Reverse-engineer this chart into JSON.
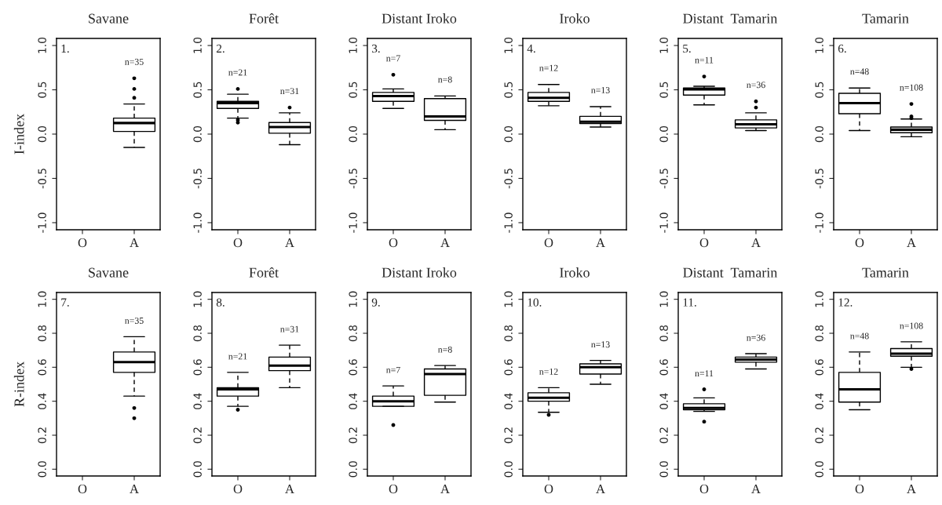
{
  "chart_data": [
    {
      "type": "box",
      "title": "Savane",
      "ylabel": "I-index",
      "categories": [
        "O",
        "A"
      ],
      "ylim": [
        -1.08,
        1.08
      ],
      "yticks": [
        {
          "value": -1,
          "label": "-1.0"
        },
        {
          "value": -0.5,
          "label": "-0.5"
        },
        {
          "value": 0,
          "label": "0.0"
        },
        {
          "value": 0.5,
          "label": "0.5"
        },
        {
          "value": 1,
          "label": "1.0"
        }
      ],
      "boxes": [
        null,
        {
          "low": -0.15,
          "q1": 0.03,
          "median": 0.125,
          "q3": 0.18,
          "high": 0.34,
          "outliers": [
            0.41,
            0.51,
            0.63
          ]
        }
      ],
      "annotations": [
        "1.",
        "n=35"
      ]
    },
    {
      "type": "box",
      "title": "Forêt",
      "categories": [
        "O",
        "A"
      ],
      "ylim": [
        -1.08,
        1.08
      ],
      "yticks": [
        {
          "value": -1,
          "label": "-1.0"
        },
        {
          "value": -0.5,
          "label": "-0.5"
        },
        {
          "value": 0,
          "label": "0.0"
        },
        {
          "value": 0.5,
          "label": "0.5"
        },
        {
          "value": 1,
          "label": "1.0"
        }
      ],
      "boxes": [
        {
          "low": 0.18,
          "q1": 0.29,
          "median": 0.35,
          "q3": 0.37,
          "high": 0.45,
          "outliers": [
            0.51,
            0.16,
            0.13
          ]
        },
        {
          "low": -0.12,
          "q1": 0.01,
          "median": 0.08,
          "q3": 0.13,
          "high": 0.24,
          "outliers": [
            0.3
          ]
        }
      ],
      "annotations": [
        "2.",
        "n=21",
        "n=31"
      ]
    },
    {
      "type": "box",
      "title": "Distant Iroko",
      "categories": [
        "O",
        "A"
      ],
      "ylim": [
        -1.08,
        1.08
      ],
      "yticks": [
        {
          "value": -1,
          "label": "-1.0"
        },
        {
          "value": -0.5,
          "label": "-0.5"
        },
        {
          "value": 0,
          "label": "0.0"
        },
        {
          "value": 0.5,
          "label": "0.5"
        },
        {
          "value": 1,
          "label": "1.0"
        }
      ],
      "boxes": [
        {
          "low": 0.29,
          "q1": 0.37,
          "median": 0.43,
          "q3": 0.47,
          "high": 0.51,
          "outliers": [
            0.67
          ]
        },
        {
          "low": 0.05,
          "q1": 0.155,
          "median": 0.2,
          "q3": 0.4,
          "high": 0.43
        }
      ],
      "annotations": [
        "3.",
        "n=7",
        "n=8"
      ]
    },
    {
      "type": "box",
      "title": "Iroko",
      "categories": [
        "O",
        "A"
      ],
      "ylim": [
        -1.08,
        1.08
      ],
      "yticks": [
        {
          "value": -1,
          "label": "-1.0"
        },
        {
          "value": -0.5,
          "label": "-0.5"
        },
        {
          "value": 0,
          "label": "0.0"
        },
        {
          "value": 0.5,
          "label": "0.5"
        },
        {
          "value": 1,
          "label": "1.0"
        }
      ],
      "boxes": [
        {
          "low": 0.32,
          "q1": 0.37,
          "median": 0.41,
          "q3": 0.47,
          "high": 0.56
        },
        {
          "low": 0.08,
          "q1": 0.12,
          "median": 0.14,
          "q3": 0.2,
          "high": 0.31
        }
      ],
      "annotations": [
        "4.",
        "n=12",
        "n=13"
      ]
    },
    {
      "type": "box",
      "title": "Distant  Tamarin",
      "categories": [
        "O",
        "A"
      ],
      "ylim": [
        -1.08,
        1.08
      ],
      "yticks": [
        {
          "value": -1,
          "label": "-1.0"
        },
        {
          "value": -0.5,
          "label": "-0.5"
        },
        {
          "value": 0,
          "label": "0.0"
        },
        {
          "value": 0.5,
          "label": "0.5"
        },
        {
          "value": 1,
          "label": "1.0"
        }
      ],
      "boxes": [
        {
          "low": 0.33,
          "q1": 0.44,
          "median": 0.505,
          "q3": 0.52,
          "high": 0.54,
          "outliers": [
            0.65
          ]
        },
        {
          "low": 0.04,
          "q1": 0.07,
          "median": 0.11,
          "q3": 0.16,
          "high": 0.24,
          "outliers": [
            0.3,
            0.37
          ]
        }
      ],
      "annotations": [
        "5.",
        "n=11",
        "n=36"
      ]
    },
    {
      "type": "box",
      "title": "Tamarin",
      "categories": [
        "O",
        "A"
      ],
      "ylim": [
        -1.08,
        1.08
      ],
      "yticks": [
        {
          "value": -1,
          "label": "-1.0"
        },
        {
          "value": -0.5,
          "label": "-0.5"
        },
        {
          "value": 0,
          "label": "0.0"
        },
        {
          "value": 0.5,
          "label": "0.5"
        },
        {
          "value": 1,
          "label": "1.0"
        }
      ],
      "boxes": [
        {
          "low": 0.04,
          "q1": 0.23,
          "median": 0.35,
          "q3": 0.46,
          "high": 0.52
        },
        {
          "low": -0.03,
          "q1": 0.015,
          "median": 0.05,
          "q3": 0.08,
          "high": 0.17,
          "outliers": [
            0.18,
            0.2,
            0.34
          ]
        }
      ],
      "annotations": [
        "6.",
        "n=48",
        "n=108"
      ]
    },
    {
      "type": "box",
      "title": "Savane",
      "ylabel": "R-index",
      "categories": [
        "O",
        "A"
      ],
      "ylim": [
        -0.04,
        1.04
      ],
      "yticks": [
        {
          "value": 0,
          "label": "0.0"
        },
        {
          "value": 0.2,
          "label": "0.2"
        },
        {
          "value": 0.4,
          "label": "0.4"
        },
        {
          "value": 0.6,
          "label": "0.6"
        },
        {
          "value": 0.8,
          "label": "0.8"
        },
        {
          "value": 1,
          "label": "1.0"
        }
      ],
      "boxes": [
        null,
        {
          "low": 0.43,
          "q1": 0.57,
          "median": 0.63,
          "q3": 0.69,
          "high": 0.78,
          "outliers": [
            0.36,
            0.3
          ]
        }
      ],
      "annotations": [
        "7.",
        "n=35"
      ]
    },
    {
      "type": "box",
      "title": "Forêt",
      "categories": [
        "O",
        "A"
      ],
      "ylim": [
        -0.04,
        1.04
      ],
      "yticks": [
        {
          "value": 0,
          "label": "0.0"
        },
        {
          "value": 0.2,
          "label": "0.2"
        },
        {
          "value": 0.4,
          "label": "0.4"
        },
        {
          "value": 0.6,
          "label": "0.6"
        },
        {
          "value": 0.8,
          "label": "0.8"
        },
        {
          "value": 1,
          "label": "1.0"
        }
      ],
      "boxes": [
        {
          "low": 0.37,
          "q1": 0.43,
          "median": 0.47,
          "q3": 0.48,
          "high": 0.57,
          "outliers": [
            0.35
          ]
        },
        {
          "low": 0.48,
          "q1": 0.58,
          "median": 0.61,
          "q3": 0.66,
          "high": 0.73
        }
      ],
      "annotations": [
        "8.",
        "n=21",
        "n=31"
      ]
    },
    {
      "type": "box",
      "title": "Distant Iroko",
      "categories": [
        "O",
        "A"
      ],
      "ylim": [
        -0.04,
        1.04
      ],
      "yticks": [
        {
          "value": 0,
          "label": "0.0"
        },
        {
          "value": 0.2,
          "label": "0.2"
        },
        {
          "value": 0.4,
          "label": "0.4"
        },
        {
          "value": 0.6,
          "label": "0.6"
        },
        {
          "value": 0.8,
          "label": "0.8"
        },
        {
          "value": 1,
          "label": "1.0"
        }
      ],
      "boxes": [
        {
          "low": 0.37,
          "q1": 0.37,
          "median": 0.4,
          "q3": 0.43,
          "high": 0.49,
          "outliers": [
            0.26
          ]
        },
        {
          "low": 0.395,
          "q1": 0.435,
          "median": 0.56,
          "q3": 0.59,
          "high": 0.61
        }
      ],
      "annotations": [
        "9.",
        "n=7",
        "n=8"
      ]
    },
    {
      "type": "box",
      "title": "Iroko",
      "categories": [
        "O",
        "A"
      ],
      "ylim": [
        -0.04,
        1.04
      ],
      "yticks": [
        {
          "value": 0,
          "label": "0.0"
        },
        {
          "value": 0.2,
          "label": "0.2"
        },
        {
          "value": 0.4,
          "label": "0.4"
        },
        {
          "value": 0.6,
          "label": "0.6"
        },
        {
          "value": 0.8,
          "label": "0.8"
        },
        {
          "value": 1,
          "label": "1.0"
        }
      ],
      "boxes": [
        {
          "low": 0.335,
          "q1": 0.4,
          "median": 0.42,
          "q3": 0.45,
          "high": 0.48,
          "outliers": [
            0.32
          ]
        },
        {
          "low": 0.5,
          "q1": 0.56,
          "median": 0.6,
          "q3": 0.62,
          "high": 0.64
        }
      ],
      "annotations": [
        "10.",
        "n=12",
        "n=13"
      ]
    },
    {
      "type": "box",
      "title": "Distant  Tamarin",
      "categories": [
        "O",
        "A"
      ],
      "ylim": [
        -0.04,
        1.04
      ],
      "yticks": [
        {
          "value": 0,
          "label": "0.0"
        },
        {
          "value": 0.2,
          "label": "0.2"
        },
        {
          "value": 0.4,
          "label": "0.4"
        },
        {
          "value": 0.6,
          "label": "0.6"
        },
        {
          "value": 0.8,
          "label": "0.8"
        },
        {
          "value": 1,
          "label": "1.0"
        }
      ],
      "boxes": [
        {
          "low": 0.34,
          "q1": 0.35,
          "median": 0.36,
          "q3": 0.385,
          "high": 0.42,
          "outliers": [
            0.47,
            0.28
          ]
        },
        {
          "low": 0.59,
          "q1": 0.63,
          "median": 0.645,
          "q3": 0.66,
          "high": 0.68
        }
      ],
      "annotations": [
        "11.",
        "n=11",
        "n=36"
      ]
    },
    {
      "type": "box",
      "title": "Tamarin",
      "categories": [
        "O",
        "A"
      ],
      "ylim": [
        -0.04,
        1.04
      ],
      "yticks": [
        {
          "value": 0,
          "label": "0.0"
        },
        {
          "value": 0.2,
          "label": "0.2"
        },
        {
          "value": 0.4,
          "label": "0.4"
        },
        {
          "value": 0.6,
          "label": "0.6"
        },
        {
          "value": 0.8,
          "label": "0.8"
        },
        {
          "value": 1,
          "label": "1.0"
        }
      ],
      "boxes": [
        {
          "low": 0.35,
          "q1": 0.395,
          "median": 0.47,
          "q3": 0.57,
          "high": 0.69
        },
        {
          "low": 0.6,
          "q1": 0.665,
          "median": 0.68,
          "q3": 0.71,
          "high": 0.75,
          "outliers": [
            0.59
          ]
        }
      ],
      "annotations": [
        "12.",
        "n=48",
        "n=108"
      ]
    }
  ]
}
